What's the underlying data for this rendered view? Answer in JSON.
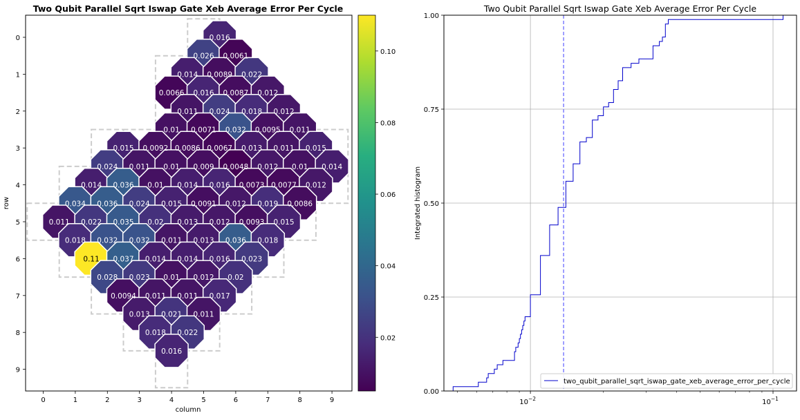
{
  "chart_data": [
    {
      "type": "heatmap",
      "title": "Two Qubit Parallel Sqrt Iswap Gate Xeb Average Error Per Cycle",
      "xlabel": "column",
      "ylabel": "row",
      "x_ticks": [
        "0",
        "1",
        "2",
        "3",
        "4",
        "5",
        "6",
        "7",
        "8",
        "9"
      ],
      "y_ticks": [
        "0",
        "1",
        "2",
        "3",
        "4",
        "5",
        "6",
        "7",
        "8",
        "9"
      ],
      "colormap": "viridis",
      "color_range": [
        0.005,
        0.11
      ],
      "colorbar_ticks": [
        "0.02",
        "0.04",
        "0.06",
        "0.08",
        "0.10"
      ],
      "colorbar_tick_values": [
        0.02,
        0.04,
        0.06,
        0.08,
        0.1
      ],
      "grid_cells": [
        [
          5,
          0
        ],
        [
          4,
          1
        ],
        [
          5,
          1
        ],
        [
          6,
          1
        ],
        [
          4,
          2
        ],
        [
          5,
          2
        ],
        [
          6,
          2
        ],
        [
          7,
          2
        ],
        [
          2,
          3
        ],
        [
          3,
          3
        ],
        [
          4,
          3
        ],
        [
          5,
          3
        ],
        [
          6,
          3
        ],
        [
          7,
          3
        ],
        [
          8,
          3
        ],
        [
          9,
          3
        ],
        [
          1,
          4
        ],
        [
          2,
          4
        ],
        [
          3,
          4
        ],
        [
          4,
          4
        ],
        [
          5,
          4
        ],
        [
          6,
          4
        ],
        [
          7,
          4
        ],
        [
          8,
          4
        ],
        [
          9,
          4
        ],
        [
          0,
          5
        ],
        [
          1,
          5
        ],
        [
          2,
          5
        ],
        [
          3,
          5
        ],
        [
          4,
          5
        ],
        [
          5,
          5
        ],
        [
          6,
          5
        ],
        [
          7,
          5
        ],
        [
          8,
          5
        ],
        [
          1,
          6
        ],
        [
          2,
          6
        ],
        [
          3,
          6
        ],
        [
          4,
          6
        ],
        [
          5,
          6
        ],
        [
          6,
          6
        ],
        [
          7,
          6
        ],
        [
          2,
          7
        ],
        [
          3,
          7
        ],
        [
          4,
          7
        ],
        [
          5,
          7
        ],
        [
          6,
          7
        ],
        [
          3,
          8
        ],
        [
          4,
          8
        ],
        [
          5,
          8
        ],
        [
          4,
          9
        ]
      ],
      "pairs": [
        {
          "c": 5.5,
          "r": 0,
          "label": "0.016",
          "value": 0.016
        },
        {
          "c": 5,
          "r": 0.5,
          "label": "0.026",
          "value": 0.026
        },
        {
          "c": 6,
          "r": 0.5,
          "label": "0.0061",
          "value": 0.0061
        },
        {
          "c": 4.5,
          "r": 1,
          "label": "0.014",
          "value": 0.014
        },
        {
          "c": 5.5,
          "r": 1,
          "label": "0.0089",
          "value": 0.0089
        },
        {
          "c": 6.5,
          "r": 1,
          "label": "0.022",
          "value": 0.022
        },
        {
          "c": 4,
          "r": 1.5,
          "label": "0.0066",
          "value": 0.0066
        },
        {
          "c": 5,
          "r": 1.5,
          "label": "0.016",
          "value": 0.016
        },
        {
          "c": 6,
          "r": 1.5,
          "label": "0.0087",
          "value": 0.0087
        },
        {
          "c": 7,
          "r": 1.5,
          "label": "0.012",
          "value": 0.012
        },
        {
          "c": 4.5,
          "r": 2,
          "label": "0.011",
          "value": 0.011
        },
        {
          "c": 5.5,
          "r": 2,
          "label": "0.024",
          "value": 0.024
        },
        {
          "c": 6.5,
          "r": 2,
          "label": "0.018",
          "value": 0.018
        },
        {
          "c": 7.5,
          "r": 2,
          "label": "0.012",
          "value": 0.012
        },
        {
          "c": 4,
          "r": 2.5,
          "label": "0.01",
          "value": 0.01
        },
        {
          "c": 5,
          "r": 2.5,
          "label": "0.0071",
          "value": 0.0071
        },
        {
          "c": 6,
          "r": 2.5,
          "label": "0.032",
          "value": 0.032
        },
        {
          "c": 7,
          "r": 2.5,
          "label": "0.0095",
          "value": 0.0095
        },
        {
          "c": 8,
          "r": 2.5,
          "label": "0.011",
          "value": 0.011
        },
        {
          "c": 2.5,
          "r": 3,
          "label": "0.015",
          "value": 0.015
        },
        {
          "c": 3.5,
          "r": 3,
          "label": "0.0092",
          "value": 0.0092
        },
        {
          "c": 4.5,
          "r": 3,
          "label": "0.0086",
          "value": 0.0086
        },
        {
          "c": 5.5,
          "r": 3,
          "label": "0.0067",
          "value": 0.0067
        },
        {
          "c": 6.5,
          "r": 3,
          "label": "0.013",
          "value": 0.013
        },
        {
          "c": 7.5,
          "r": 3,
          "label": "0.011",
          "value": 0.011
        },
        {
          "c": 8.5,
          "r": 3,
          "label": "0.015",
          "value": 0.015
        },
        {
          "c": 2,
          "r": 3.5,
          "label": "0.024",
          "value": 0.024
        },
        {
          "c": 3,
          "r": 3.5,
          "label": "0.011",
          "value": 0.011
        },
        {
          "c": 4,
          "r": 3.5,
          "label": "0.01",
          "value": 0.01
        },
        {
          "c": 5,
          "r": 3.5,
          "label": "0.009",
          "value": 0.009
        },
        {
          "c": 6,
          "r": 3.5,
          "label": "0.0048",
          "value": 0.0048
        },
        {
          "c": 7,
          "r": 3.5,
          "label": "0.012",
          "value": 0.012
        },
        {
          "c": 8,
          "r": 3.5,
          "label": "0.01",
          "value": 0.01
        },
        {
          "c": 9,
          "r": 3.5,
          "label": "0.014",
          "value": 0.014
        },
        {
          "c": 1.5,
          "r": 4,
          "label": "0.014",
          "value": 0.014
        },
        {
          "c": 2.5,
          "r": 4,
          "label": "0.036",
          "value": 0.036
        },
        {
          "c": 3.5,
          "r": 4,
          "label": "0.01",
          "value": 0.01
        },
        {
          "c": 4.5,
          "r": 4,
          "label": "0.014",
          "value": 0.014
        },
        {
          "c": 5.5,
          "r": 4,
          "label": "0.016",
          "value": 0.016
        },
        {
          "c": 6.5,
          "r": 4,
          "label": "0.0073",
          "value": 0.0073
        },
        {
          "c": 7.5,
          "r": 4,
          "label": "0.0077",
          "value": 0.0077
        },
        {
          "c": 8.5,
          "r": 4,
          "label": "0.012",
          "value": 0.012
        },
        {
          "c": 1,
          "r": 4.5,
          "label": "0.034",
          "value": 0.034
        },
        {
          "c": 2,
          "r": 4.5,
          "label": "0.036",
          "value": 0.036
        },
        {
          "c": 3,
          "r": 4.5,
          "label": "0.024",
          "value": 0.024
        },
        {
          "c": 4,
          "r": 4.5,
          "label": "0.015",
          "value": 0.015
        },
        {
          "c": 5,
          "r": 4.5,
          "label": "0.0091",
          "value": 0.0091
        },
        {
          "c": 6,
          "r": 4.5,
          "label": "0.012",
          "value": 0.012
        },
        {
          "c": 7,
          "r": 4.5,
          "label": "0.019",
          "value": 0.019
        },
        {
          "c": 8,
          "r": 4.5,
          "label": "0.0086",
          "value": 0.0086
        },
        {
          "c": 0.5,
          "r": 5,
          "label": "0.011",
          "value": 0.011
        },
        {
          "c": 1.5,
          "r": 5,
          "label": "0.022",
          "value": 0.022
        },
        {
          "c": 2.5,
          "r": 5,
          "label": "0.035",
          "value": 0.035
        },
        {
          "c": 3.5,
          "r": 5,
          "label": "0.02",
          "value": 0.02
        },
        {
          "c": 4.5,
          "r": 5,
          "label": "0.013",
          "value": 0.013
        },
        {
          "c": 5.5,
          "r": 5,
          "label": "0.012",
          "value": 0.012
        },
        {
          "c": 6.5,
          "r": 5,
          "label": "0.0093",
          "value": 0.0093
        },
        {
          "c": 7.5,
          "r": 5,
          "label": "0.015",
          "value": 0.015
        },
        {
          "c": 1,
          "r": 5.5,
          "label": "0.018",
          "value": 0.018
        },
        {
          "c": 2,
          "r": 5.5,
          "label": "0.032",
          "value": 0.032
        },
        {
          "c": 3,
          "r": 5.5,
          "label": "0.032",
          "value": 0.032
        },
        {
          "c": 4,
          "r": 5.5,
          "label": "0.011",
          "value": 0.011
        },
        {
          "c": 5,
          "r": 5.5,
          "label": "0.013",
          "value": 0.013
        },
        {
          "c": 6,
          "r": 5.5,
          "label": "0.036",
          "value": 0.036
        },
        {
          "c": 7,
          "r": 5.5,
          "label": "0.018",
          "value": 0.018
        },
        {
          "c": 1.5,
          "r": 6,
          "label": "0.11",
          "value": 0.11
        },
        {
          "c": 2.5,
          "r": 6,
          "label": "0.037",
          "value": 0.037
        },
        {
          "c": 3.5,
          "r": 6,
          "label": "0.014",
          "value": 0.014
        },
        {
          "c": 4.5,
          "r": 6,
          "label": "0.014",
          "value": 0.014
        },
        {
          "c": 5.5,
          "r": 6,
          "label": "0.016",
          "value": 0.016
        },
        {
          "c": 6.5,
          "r": 6,
          "label": "0.023",
          "value": 0.023
        },
        {
          "c": 2,
          "r": 6.5,
          "label": "0.028",
          "value": 0.028
        },
        {
          "c": 3,
          "r": 6.5,
          "label": "0.023",
          "value": 0.023
        },
        {
          "c": 4,
          "r": 6.5,
          "label": "0.01",
          "value": 0.01
        },
        {
          "c": 5,
          "r": 6.5,
          "label": "0.012",
          "value": 0.012
        },
        {
          "c": 6,
          "r": 6.5,
          "label": "0.02",
          "value": 0.02
        },
        {
          "c": 2.5,
          "r": 7,
          "label": "0.0094",
          "value": 0.0094
        },
        {
          "c": 3.5,
          "r": 7,
          "label": "0.011",
          "value": 0.011
        },
        {
          "c": 4.5,
          "r": 7,
          "label": "0.011",
          "value": 0.011
        },
        {
          "c": 5.5,
          "r": 7,
          "label": "0.017",
          "value": 0.017
        },
        {
          "c": 3,
          "r": 7.5,
          "label": "0.013",
          "value": 0.013
        },
        {
          "c": 4,
          "r": 7.5,
          "label": "0.021",
          "value": 0.021
        },
        {
          "c": 5,
          "r": 7.5,
          "label": "0.011",
          "value": 0.011
        },
        {
          "c": 3.5,
          "r": 8,
          "label": "0.018",
          "value": 0.018
        },
        {
          "c": 4.5,
          "r": 8,
          "label": "0.022",
          "value": 0.022
        },
        {
          "c": 4,
          "r": 8.5,
          "label": "0.016",
          "value": 0.016
        }
      ]
    },
    {
      "type": "line",
      "subtype": "step-cdf",
      "title": "Two Qubit Parallel Sqrt Iswap Gate Xeb Average Error Per Cycle",
      "xlabel": "",
      "ylabel": "Integrated histogram",
      "xscale": "log",
      "xlim": [
        0.0044,
        0.125
      ],
      "ylim": [
        0,
        1
      ],
      "x_ticks": [
        {
          "value": 0.01,
          "base": "10",
          "exp": "−2"
        },
        {
          "value": 0.1,
          "base": "10",
          "exp": "−1"
        }
      ],
      "y_ticks": [
        "0.00",
        "0.25",
        "0.50",
        "0.75",
        "1.00"
      ],
      "y_tick_values": [
        0,
        0.25,
        0.5,
        0.75,
        1.0
      ],
      "grid": true,
      "series": [
        {
          "name": "two_qubit_parallel_sqrt_iswap_gate_xeb_average_error_per_cycle",
          "color": "#0000cc"
        }
      ],
      "median_line": {
        "x": 0.0137,
        "color": "#6a6aff",
        "style": "dashed"
      },
      "legend_placement": "lower-right"
    }
  ]
}
